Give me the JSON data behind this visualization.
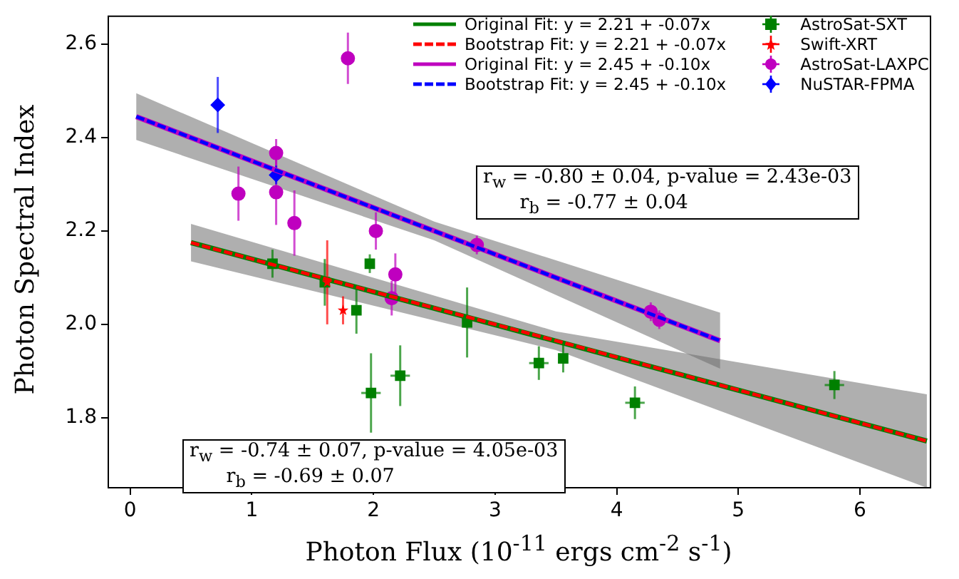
{
  "chart_data": {
    "type": "scatter",
    "xlabel": "Photon Flux (10$^{-11}$ ergs cm$^{-2}$ s$^{-1}$)",
    "ylabel": "Photon Spectral Index",
    "xlim": [
      -0.18,
      6.58
    ],
    "xticks": [
      0,
      1,
      2,
      3,
      4,
      5,
      6
    ],
    "ylim": [
      1.65,
      2.66
    ],
    "yticks": [
      {
        "value": 1.8,
        "label": "1.8"
      },
      {
        "value": 2.0,
        "label": "2.0"
      },
      {
        "value": 2.2,
        "label": "2.2"
      },
      {
        "value": 2.4,
        "label": "2.4"
      },
      {
        "value": 2.6,
        "label": "2.6"
      }
    ],
    "grid": false,
    "legend": "top right",
    "series": [
      {
        "name": "Original Fit: y = 2.21 + -0.07x",
        "type": "line",
        "line_style": "solid",
        "color": "#008000",
        "x": [
          0.5,
          6.55
        ],
        "values": [
          2.175,
          1.75
        ]
      },
      {
        "name": "Bootstrap Fit: y = 2.21 + -0.07x",
        "type": "line",
        "line_style": "dashed",
        "color": "#ff0000",
        "x": [
          0.5,
          3.5,
          6.55
        ],
        "values": [
          2.175,
          1.965,
          1.75
        ],
        "lower": [
          2.135,
          1.945,
          1.65
        ],
        "upper": [
          2.215,
          1.985,
          1.85
        ]
      },
      {
        "name": "Original Fit: y = 2.45 + -0.10x",
        "type": "line",
        "line_style": "solid",
        "color": "#bf00bf",
        "x": [
          0.05,
          4.85
        ],
        "values": [
          2.445,
          1.965
        ]
      },
      {
        "name": "Bootstrap Fit: y = 2.45 + -0.10x",
        "type": "line",
        "line_style": "dashed",
        "color": "#0000ff",
        "x": [
          0.05,
          2.5,
          4.85
        ],
        "values": [
          2.445,
          2.2,
          1.965
        ],
        "lower": [
          2.395,
          2.18,
          1.905
        ],
        "upper": [
          2.495,
          2.22,
          2.025
        ]
      },
      {
        "name": "AstroSat-SXT",
        "type": "scatter",
        "marker": "square",
        "color": "#008000",
        "x": [
          1.17,
          1.6,
          1.86,
          1.97,
          1.98,
          2.22,
          2.77,
          3.36,
          3.56,
          4.15,
          5.79
        ],
        "values": [
          2.13,
          2.09,
          2.03,
          2.13,
          1.853,
          1.89,
          2.004,
          1.917,
          1.927,
          1.832,
          1.87
        ],
        "errors": [
          0.03,
          0.05,
          0.05,
          0.02,
          0.085,
          0.065,
          0.075,
          0.036,
          0.03,
          0.035,
          0.03
        ],
        "xerrors": [
          null,
          null,
          null,
          null,
          0.08,
          0.08,
          null,
          0.08,
          null,
          0.08,
          0.08
        ]
      },
      {
        "name": "Swift-XRT",
        "type": "scatter",
        "marker": "star",
        "color": "#ff0000",
        "x": [
          1.62,
          1.75
        ],
        "values": [
          2.09,
          2.03
        ],
        "errors": [
          0.09,
          0.03
        ]
      },
      {
        "name": "AstroSat-LAXPC",
        "type": "scatter",
        "marker": "circle",
        "color": "#bf00bf",
        "x": [
          0.89,
          1.2,
          1.2,
          1.35,
          1.79,
          2.02,
          2.15,
          2.18,
          2.85,
          4.28,
          4.35
        ],
        "values": [
          2.28,
          2.367,
          2.283,
          2.217,
          2.57,
          2.2,
          2.056,
          2.107,
          2.17,
          2.027,
          2.01
        ],
        "errors": [
          0.058,
          0.03,
          0.07,
          0.07,
          0.055,
          0.04,
          0.037,
          0.045,
          0.02,
          0.02,
          0.02
        ]
      },
      {
        "name": "NuSTAR-FPMA",
        "type": "scatter",
        "marker": "diamond",
        "color": "#0000ff",
        "x": [
          0.72,
          1.2
        ],
        "values": [
          2.47,
          2.32
        ],
        "errors": [
          0.06,
          0.02
        ]
      }
    ],
    "annotations": [
      "r$_{w}$ = -0.80 ± 0.04, p-value = 2.43e-03\n      r$_{b}$ = -0.77 ± 0.04",
      "r$_{w}$ = -0.74 ± 0.07, p-value = 4.05e-03\n      r$_{b}$ = -0.69 ± 0.07"
    ]
  }
}
